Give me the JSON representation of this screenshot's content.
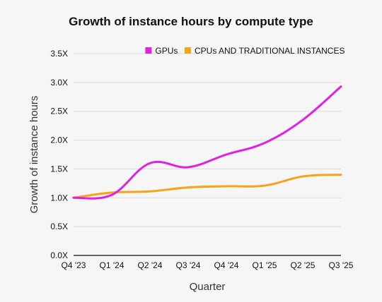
{
  "chart_data": {
    "type": "line",
    "title": "Growth of instance hours by compute type",
    "xlabel": "Quarter",
    "ylabel": "Growth of instance hours",
    "categories": [
      "Q4 '23",
      "Q1 '24",
      "Q2 '24",
      "Q3 '24",
      "Q4 '24",
      "Q1 '25",
      "Q2 '25",
      "Q3 '25"
    ],
    "yticks": [
      "0.0X",
      "0.5X",
      "1.0X",
      "1.5X",
      "2.0X",
      "2.5X",
      "3.0X",
      "3.5X"
    ],
    "ylim": [
      0,
      3.5
    ],
    "grid": true,
    "legend_position": "top-right",
    "series": [
      {
        "name": "GPUs",
        "color": "#e021e0",
        "values": [
          1.0,
          1.05,
          1.6,
          1.53,
          1.75,
          1.95,
          2.35,
          2.93
        ]
      },
      {
        "name": "CPUs AND TRADITIONAL INSTANCES",
        "color": "#f5a31a",
        "values": [
          1.0,
          1.09,
          1.11,
          1.18,
          1.2,
          1.21,
          1.37,
          1.4
        ]
      }
    ]
  }
}
